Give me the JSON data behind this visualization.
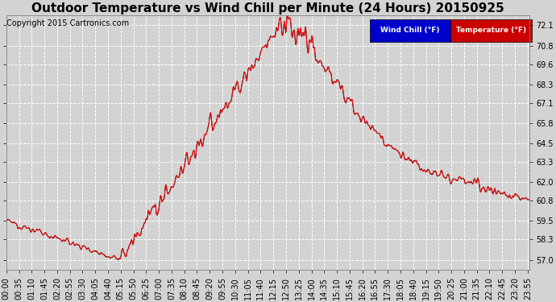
{
  "title": "Outdoor Temperature vs Wind Chill per Minute (24 Hours) 20150925",
  "copyright": "Copyright 2015 Cartronics.com",
  "legend_wind_chill": "Wind Chill (°F)",
  "legend_temperature": "Temperature (°F)",
  "y_ticks": [
    57.0,
    58.3,
    59.5,
    60.8,
    62.0,
    63.3,
    64.5,
    65.8,
    67.1,
    68.3,
    69.6,
    70.8,
    72.1
  ],
  "y_min": 56.35,
  "y_max": 72.75,
  "background_color": "#d3d3d3",
  "plot_bg_color": "#d3d3d3",
  "wind_chill_color": "#ff0000",
  "temperature_color": "#000000",
  "grid_color": "#ffffff",
  "title_fontsize": 11,
  "copyright_fontsize": 7,
  "tick_label_fontsize": 7,
  "total_minutes": 1440,
  "x_tick_interval": 35,
  "legend_wind_bg": "#0000cc",
  "legend_temp_bg": "#cc0000"
}
